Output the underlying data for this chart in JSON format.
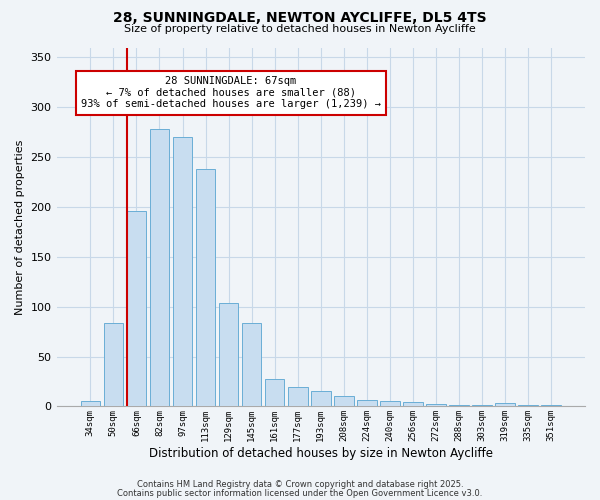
{
  "title": "28, SUNNINGDALE, NEWTON AYCLIFFE, DL5 4TS",
  "subtitle": "Size of property relative to detached houses in Newton Aycliffe",
  "xlabel": "Distribution of detached houses by size in Newton Aycliffe",
  "ylabel": "Number of detached properties",
  "bar_labels": [
    "34sqm",
    "50sqm",
    "66sqm",
    "82sqm",
    "97sqm",
    "113sqm",
    "129sqm",
    "145sqm",
    "161sqm",
    "177sqm",
    "193sqm",
    "208sqm",
    "224sqm",
    "240sqm",
    "256sqm",
    "272sqm",
    "288sqm",
    "303sqm",
    "319sqm",
    "335sqm",
    "351sqm"
  ],
  "bar_values": [
    5,
    84,
    196,
    278,
    270,
    238,
    104,
    84,
    27,
    19,
    15,
    10,
    6,
    5,
    4,
    2,
    1,
    1,
    3,
    1,
    1
  ],
  "bar_color": "#c8ddf0",
  "bar_edge_color": "#6aaed6",
  "vline_color": "#cc0000",
  "annotation_title": "28 SUNNINGDALE: 67sqm",
  "annotation_line1": "← 7% of detached houses are smaller (88)",
  "annotation_line2": "93% of semi-detached houses are larger (1,239) →",
  "annotation_box_color": "#ffffff",
  "annotation_box_edge": "#cc0000",
  "ylim": [
    0,
    360
  ],
  "yticks": [
    0,
    50,
    100,
    150,
    200,
    250,
    300,
    350
  ],
  "footer1": "Contains HM Land Registry data © Crown copyright and database right 2025.",
  "footer2": "Contains public sector information licensed under the Open Government Licence v3.0.",
  "bg_color": "#f0f4f8",
  "grid_color": "#c8d8e8"
}
